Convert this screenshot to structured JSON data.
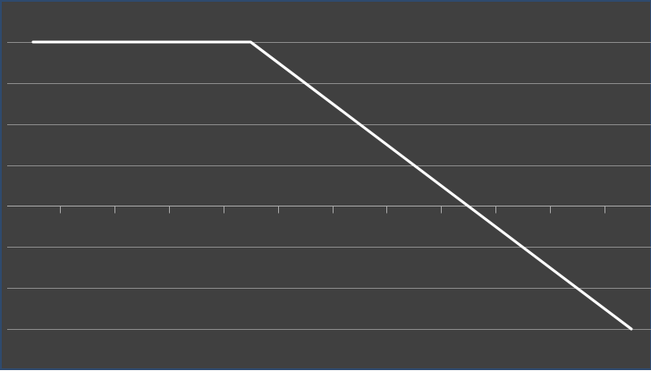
{
  "chart_data": {
    "type": "line",
    "title": "",
    "xlabel": "",
    "ylabel": "",
    "grid": true,
    "legend": "none",
    "x": [
      0,
      4,
      11
    ],
    "xlim": [
      -0.5,
      11.5
    ],
    "ylim": [
      -3,
      4
    ],
    "yticks": [
      -3,
      -2,
      -1,
      0,
      1,
      2,
      3,
      4
    ],
    "xticks": [
      0.5,
      1.5,
      2.5,
      3.5,
      4.5,
      5.5,
      6.5,
      7.5,
      8.5,
      9.5,
      10.5
    ],
    "series": [
      {
        "values": [
          4,
          4,
          -3
        ]
      }
    ],
    "colors": {
      "background": "#404040",
      "border": "#2f4a6e",
      "gridline": "#8a8a8a",
      "axis": "#a6a6a6",
      "line": "#ffffff"
    }
  }
}
